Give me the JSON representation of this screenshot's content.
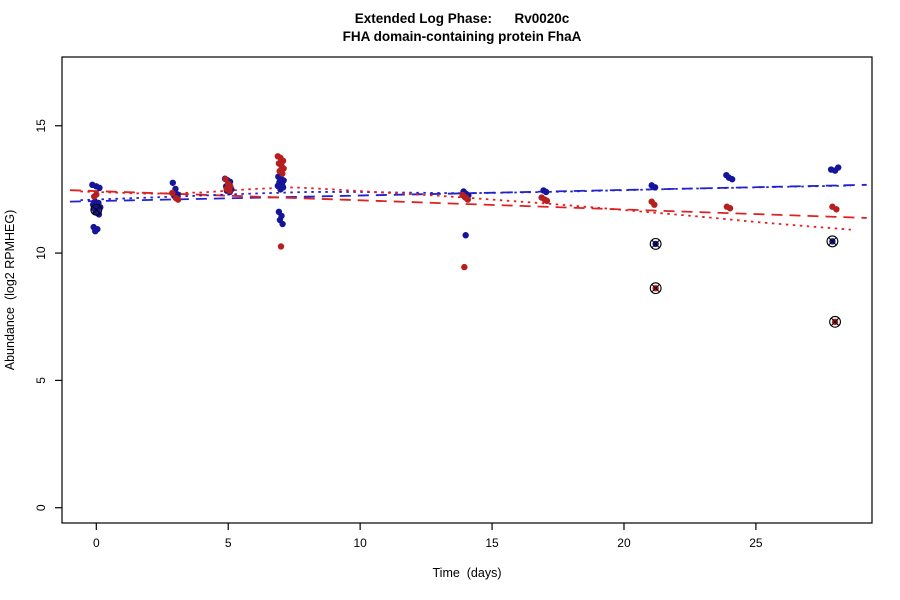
{
  "chart_data": {
    "type": "scatter",
    "title": "Extended Log Phase:      Rv0020c",
    "subtitle": "FHA domain-containing protein FhaA",
    "xlabel": "Time  (days)",
    "ylabel": "Abundance  (log2 RPMHEG)",
    "xlim": [
      -1.3,
      29.4
    ],
    "ylim": [
      -0.6,
      17.7
    ],
    "xticks": [
      0,
      5,
      10,
      15,
      20,
      25
    ],
    "yticks": [
      0,
      5,
      10,
      15
    ],
    "grid": false,
    "legend": "none",
    "colors": {
      "point_blue": "#151599",
      "point_red": "#b51f1f",
      "line_blue": "#2222cc",
      "line_red": "#dd2222",
      "outlier_ring": "#000000"
    },
    "series": [
      {
        "name": "blue-replicates",
        "kind": "points",
        "color": "point_blue",
        "points": [
          [
            -0.15,
            12.68
          ],
          [
            0.0,
            12.62
          ],
          [
            0.12,
            12.56
          ],
          [
            -0.05,
            12.02
          ],
          [
            0.08,
            11.97
          ],
          [
            -0.12,
            11.9
          ],
          [
            0.03,
            11.86
          ],
          [
            0.15,
            11.8
          ],
          [
            -0.08,
            11.74
          ],
          [
            0.05,
            11.68
          ],
          [
            -0.02,
            11.6
          ],
          [
            0.1,
            11.52
          ],
          [
            -0.1,
            11.02
          ],
          [
            0.04,
            10.94
          ],
          [
            -0.04,
            10.86
          ],
          [
            2.9,
            12.76
          ],
          [
            3.0,
            12.52
          ],
          [
            3.08,
            12.3
          ],
          [
            2.96,
            12.24
          ],
          [
            4.88,
            12.92
          ],
          [
            4.97,
            12.86
          ],
          [
            5.07,
            12.8
          ],
          [
            4.92,
            12.62
          ],
          [
            5.02,
            12.56
          ],
          [
            5.12,
            12.5
          ],
          [
            4.95,
            12.45
          ],
          [
            5.06,
            12.4
          ],
          [
            6.9,
            13.0
          ],
          [
            7.0,
            12.92
          ],
          [
            7.1,
            12.85
          ],
          [
            6.94,
            12.78
          ],
          [
            7.04,
            12.7
          ],
          [
            6.88,
            12.64
          ],
          [
            7.08,
            12.58
          ],
          [
            6.98,
            12.5
          ],
          [
            6.92,
            11.62
          ],
          [
            7.02,
            11.46
          ],
          [
            6.96,
            11.3
          ],
          [
            7.06,
            11.14
          ],
          [
            13.92,
            12.42
          ],
          [
            14.02,
            12.32
          ],
          [
            14.1,
            12.26
          ],
          [
            13.97,
            12.2
          ],
          [
            14.0,
            10.7
          ],
          [
            16.95,
            12.46
          ],
          [
            17.05,
            12.4
          ],
          [
            21.05,
            12.66
          ],
          [
            21.18,
            12.58
          ],
          [
            23.88,
            13.06
          ],
          [
            23.98,
            12.96
          ],
          [
            24.1,
            12.9
          ],
          [
            27.85,
            13.28
          ],
          [
            28.0,
            13.24
          ],
          [
            28.12,
            13.36
          ]
        ]
      },
      {
        "name": "red-replicates",
        "kind": "points",
        "color": "point_red",
        "points": [
          [
            0.0,
            12.3
          ],
          [
            -0.08,
            12.22
          ],
          [
            2.88,
            12.36
          ],
          [
            3.02,
            12.16
          ],
          [
            3.1,
            12.1
          ],
          [
            4.9,
            12.9
          ],
          [
            5.0,
            12.72
          ],
          [
            5.08,
            12.62
          ],
          [
            4.94,
            12.52
          ],
          [
            5.05,
            12.44
          ],
          [
            6.88,
            13.8
          ],
          [
            6.98,
            13.74
          ],
          [
            7.08,
            13.62
          ],
          [
            6.92,
            13.52
          ],
          [
            7.02,
            13.42
          ],
          [
            7.1,
            13.32
          ],
          [
            6.95,
            13.22
          ],
          [
            7.05,
            13.12
          ],
          [
            7.0,
            10.26
          ],
          [
            13.88,
            12.28
          ],
          [
            14.0,
            12.18
          ],
          [
            14.08,
            12.1
          ],
          [
            13.95,
            9.45
          ],
          [
            16.88,
            12.18
          ],
          [
            17.0,
            12.1
          ],
          [
            17.08,
            12.05
          ],
          [
            21.05,
            12.02
          ],
          [
            21.15,
            11.9
          ],
          [
            23.9,
            11.82
          ],
          [
            24.02,
            11.76
          ],
          [
            27.9,
            11.82
          ],
          [
            28.05,
            11.72
          ]
        ]
      },
      {
        "name": "blue-trend-linear",
        "kind": "line",
        "dash": "dashed",
        "color": "line_blue",
        "points": [
          [
            -1.0,
            12.02
          ],
          [
            29.2,
            12.68
          ]
        ]
      },
      {
        "name": "red-trend-linear",
        "kind": "line",
        "dash": "dashed",
        "color": "line_red",
        "points": [
          [
            -1.0,
            12.47
          ],
          [
            29.2,
            11.38
          ]
        ]
      },
      {
        "name": "blue-trend-smooth",
        "kind": "line",
        "dash": "dotted",
        "color": "line_blue",
        "points": [
          [
            -0.6,
            12.08
          ],
          [
            2,
            12.18
          ],
          [
            4,
            12.26
          ],
          [
            6,
            12.34
          ],
          [
            8,
            12.4
          ],
          [
            10,
            12.4
          ],
          [
            12,
            12.37
          ],
          [
            14,
            12.35
          ],
          [
            16,
            12.38
          ],
          [
            18,
            12.42
          ],
          [
            20,
            12.47
          ],
          [
            22,
            12.52
          ],
          [
            24,
            12.56
          ],
          [
            26,
            12.6
          ],
          [
            28.6,
            12.65
          ]
        ]
      },
      {
        "name": "red-trend-smooth",
        "kind": "line",
        "dash": "dotted",
        "color": "line_red",
        "points": [
          [
            -0.6,
            12.42
          ],
          [
            2,
            12.33
          ],
          [
            4,
            12.38
          ],
          [
            6,
            12.52
          ],
          [
            7.5,
            12.58
          ],
          [
            9,
            12.5
          ],
          [
            11,
            12.37
          ],
          [
            13,
            12.25
          ],
          [
            15,
            12.1
          ],
          [
            17,
            11.95
          ],
          [
            19,
            11.78
          ],
          [
            21,
            11.6
          ],
          [
            23,
            11.42
          ],
          [
            25,
            11.22
          ],
          [
            27,
            11.05
          ],
          [
            28.6,
            10.92
          ]
        ]
      },
      {
        "name": "flagged-outliers",
        "kind": "outliers",
        "points": [
          [
            0.0,
            11.7,
            "point_blue"
          ],
          [
            21.2,
            10.36,
            "point_blue"
          ],
          [
            21.2,
            8.62,
            "point_red"
          ],
          [
            27.9,
            10.46,
            "point_blue"
          ],
          [
            28.0,
            7.3,
            "point_red"
          ]
        ]
      }
    ]
  }
}
